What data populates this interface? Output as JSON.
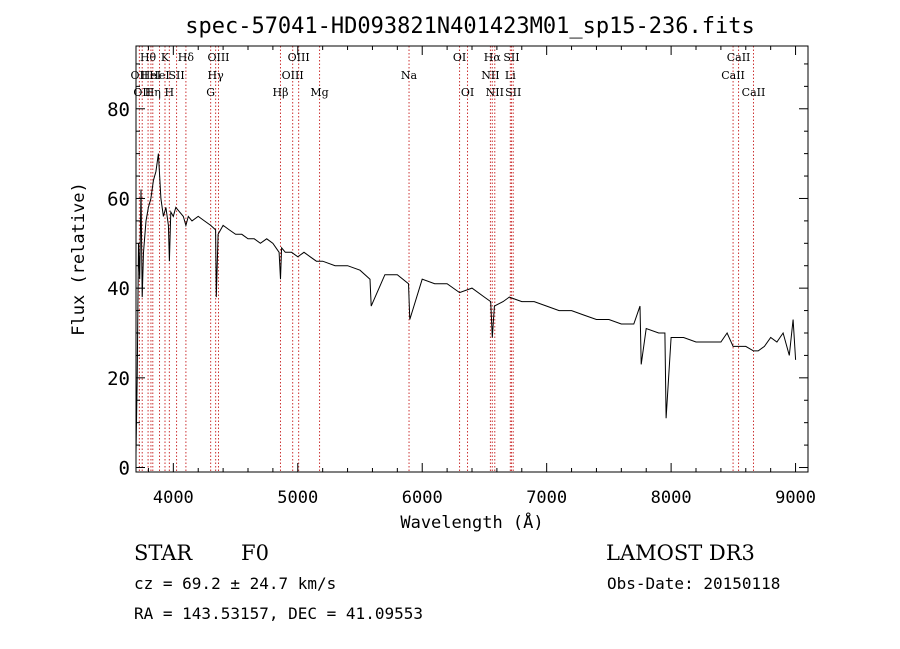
{
  "chart_data": {
    "type": "line",
    "title": "spec-57041-HD093821N401423M01_sp15-236.fits",
    "xlabel": "Wavelength (Å)",
    "ylabel": "Flux (relative)",
    "xlim": [
      3700,
      9100
    ],
    "ylim": [
      -1,
      94
    ],
    "x_ticks": [
      4000,
      5000,
      6000,
      7000,
      8000,
      9000
    ],
    "y_ticks": [
      0,
      20,
      40,
      60,
      80
    ],
    "grid": false,
    "line_color": "#000000",
    "marker_color": "#cc3333",
    "series": [
      {
        "x": [
          3700,
          3710,
          3720,
          3730,
          3740,
          3750,
          3760,
          3780,
          3800,
          3820,
          3840,
          3860,
          3880,
          3900,
          3920,
          3940,
          3960,
          3968,
          3980,
          4000,
          4020,
          4050,
          4080,
          4101,
          4120,
          4150,
          4200,
          4250,
          4300,
          4340,
          4345,
          4360,
          4400,
          4450,
          4500,
          4550,
          4600,
          4650,
          4700,
          4750,
          4800,
          4850,
          4861,
          4870,
          4900,
          4950,
          5000,
          5050,
          5100,
          5150,
          5200,
          5300,
          5400,
          5500,
          5580,
          5590,
          5700,
          5800,
          5890,
          5900,
          6000,
          6100,
          6200,
          6300,
          6400,
          6500,
          6550,
          6563,
          6580,
          6650,
          6700,
          6800,
          6900,
          7000,
          7100,
          7200,
          7300,
          7400,
          7500,
          7600,
          7700,
          7750,
          7760,
          7800,
          7900,
          7950,
          7960,
          8000,
          8100,
          8200,
          8300,
          8400,
          8450,
          8498,
          8542,
          8600,
          8662,
          8700,
          8750,
          8800,
          8850,
          8900,
          8950,
          8980,
          9000
        ],
        "y": [
          3,
          20,
          50,
          42,
          62,
          38,
          48,
          55,
          58,
          60,
          64,
          66,
          70,
          60,
          56,
          58,
          54,
          46,
          57,
          56,
          58,
          57,
          56,
          54,
          56,
          55,
          56,
          55,
          54,
          53,
          38,
          52,
          54,
          53,
          52,
          52,
          51,
          51,
          50,
          51,
          50,
          48,
          42,
          49,
          48,
          48,
          47,
          48,
          47,
          46,
          46,
          45,
          45,
          44,
          42,
          36,
          43,
          43,
          41,
          33,
          42,
          41,
          41,
          39,
          40,
          38,
          37,
          29,
          36,
          37,
          38,
          37,
          37,
          36,
          35,
          35,
          34,
          33,
          33,
          32,
          32,
          36,
          23,
          31,
          30,
          30,
          11,
          29,
          29,
          28,
          28,
          28,
          30,
          27,
          27,
          27,
          26,
          26,
          27,
          29,
          28,
          30,
          25,
          33,
          24
        ]
      }
    ],
    "lines": [
      {
        "x": 3727,
        "label": "OII",
        "tier": 1
      },
      {
        "x": 3750,
        "label": "OII",
        "tier": 2
      },
      {
        "x": 3797,
        "label": "Hθ",
        "tier": 0
      },
      {
        "x": 3820,
        "label": "HeI",
        "tier": 1
      },
      {
        "x": 3835,
        "label": "Hη",
        "tier": 2
      },
      {
        "x": 3889,
        "label": "HeI",
        "tier": 1
      },
      {
        "x": 3933,
        "label": "K",
        "tier": 0
      },
      {
        "x": 3968,
        "label": "H",
        "tier": 2
      },
      {
        "x": 4026,
        "label": "SII",
        "tier": 1
      },
      {
        "x": 4101,
        "label": "Hδ",
        "tier": 0
      },
      {
        "x": 4300,
        "label": "G",
        "tier": 2
      },
      {
        "x": 4340,
        "label": "Hγ",
        "tier": 1
      },
      {
        "x": 4363,
        "label": "OIII",
        "tier": 0
      },
      {
        "x": 4861,
        "label": "Hβ",
        "tier": 2
      },
      {
        "x": 4959,
        "label": "OIII",
        "tier": 1
      },
      {
        "x": 5007,
        "label": "OIII",
        "tier": 0
      },
      {
        "x": 5175,
        "label": "Mg",
        "tier": 2
      },
      {
        "x": 5894,
        "label": "Na",
        "tier": 1
      },
      {
        "x": 6300,
        "label": "OI",
        "tier": 0
      },
      {
        "x": 6364,
        "label": "OI",
        "tier": 2
      },
      {
        "x": 6548,
        "label": "NII",
        "tier": 1
      },
      {
        "x": 6563,
        "label": "Hα",
        "tier": 0
      },
      {
        "x": 6583,
        "label": "NII",
        "tier": 2
      },
      {
        "x": 6708,
        "label": "Li",
        "tier": 1
      },
      {
        "x": 6717,
        "label": "SII",
        "tier": 0
      },
      {
        "x": 6731,
        "label": "SII",
        "tier": 2
      },
      {
        "x": 8498,
        "label": "CaII",
        "tier": 1
      },
      {
        "x": 8542,
        "label": "CaII",
        "tier": 0
      },
      {
        "x": 8662,
        "label": "CaII",
        "tier": 2
      }
    ]
  },
  "info": {
    "class": "STAR",
    "subclass": "F0",
    "survey": "LAMOST DR3",
    "cz": "cz = 69.2 ± 24.7 km/s",
    "obs_date": "Obs-Date: 20150118",
    "coords": "RA = 143.53157, DEC =  41.09553"
  }
}
